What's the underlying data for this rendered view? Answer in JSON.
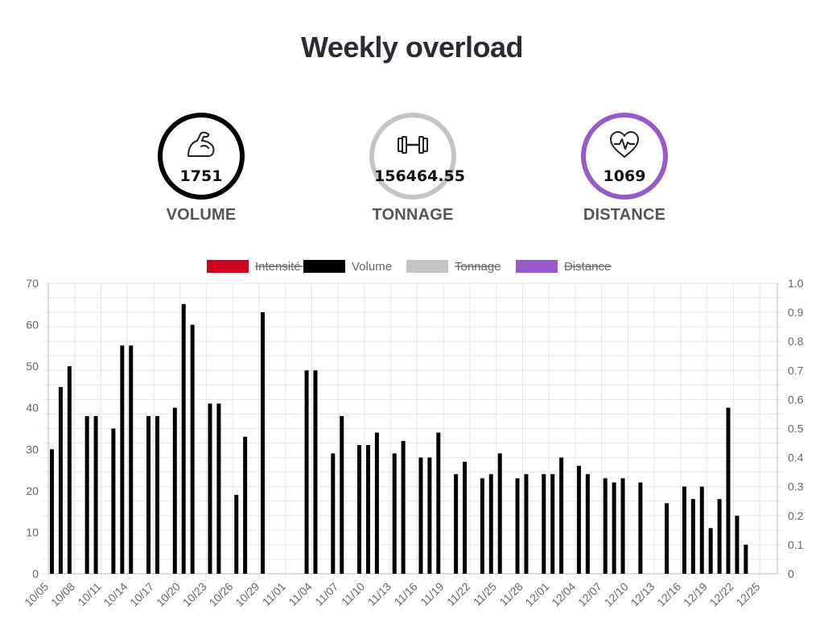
{
  "title": "Weekly overload",
  "stats": [
    {
      "label": "VOLUME",
      "value": "1751",
      "color": "#000000",
      "icon": "flexed-arm-icon"
    },
    {
      "label": "TONNAGE",
      "value": "156464.55",
      "color": "#c4c4c4",
      "icon": "dumbbell-icon"
    },
    {
      "label": "DISTANCE",
      "value": "1069",
      "color": "#9a59c9",
      "icon": "heartbeat-icon"
    }
  ],
  "chart_data": {
    "type": "bar",
    "legend": [
      {
        "name": "Intensité",
        "color": "#d0021b",
        "hidden": true
      },
      {
        "name": "Volume",
        "color": "#000000",
        "hidden": false
      },
      {
        "name": "Tonnage",
        "color": "#c4c4c4",
        "hidden": true
      },
      {
        "name": "Distance",
        "color": "#9a59c9",
        "hidden": true
      }
    ],
    "legend_position": "top",
    "x_range": [
      "2023-10-05",
      "2023-12-27"
    ],
    "x_ticks": [
      "10/05",
      "10/08",
      "10/11",
      "10/14",
      "10/17",
      "10/20",
      "10/23",
      "10/26",
      "10/29",
      "11/01",
      "11/04",
      "11/07",
      "11/10",
      "11/13",
      "11/16",
      "11/19",
      "11/22",
      "11/25",
      "11/28",
      "12/01",
      "12/04",
      "12/07",
      "12/10",
      "12/13",
      "12/16",
      "12/19",
      "12/22",
      "12/25"
    ],
    "ylim": [
      0,
      70
    ],
    "y_ticks": [
      0,
      10,
      20,
      30,
      40,
      50,
      60,
      70
    ],
    "y2lim": [
      0,
      1.0
    ],
    "y2_ticks": [
      "0",
      "0.1",
      "0.2",
      "0.3",
      "0.4",
      "0.5",
      "0.6",
      "0.7",
      "0.8",
      "0.9",
      "1.0"
    ],
    "grid": true,
    "series": [
      {
        "name": "Volume",
        "color": "#000000",
        "points": [
          [
            "2023-10-05",
            30
          ],
          [
            "2023-10-06",
            45
          ],
          [
            "2023-10-07",
            50
          ],
          [
            "2023-10-09",
            38
          ],
          [
            "2023-10-10",
            38
          ],
          [
            "2023-10-12",
            35
          ],
          [
            "2023-10-13",
            55
          ],
          [
            "2023-10-14",
            55
          ],
          [
            "2023-10-16",
            38
          ],
          [
            "2023-10-17",
            38
          ],
          [
            "2023-10-19",
            40
          ],
          [
            "2023-10-20",
            65
          ],
          [
            "2023-10-21",
            60
          ],
          [
            "2023-10-23",
            41
          ],
          [
            "2023-10-24",
            41
          ],
          [
            "2023-10-26",
            19
          ],
          [
            "2023-10-27",
            33
          ],
          [
            "2023-10-29",
            63
          ],
          [
            "2023-11-03",
            49
          ],
          [
            "2023-11-04",
            49
          ],
          [
            "2023-11-06",
            29
          ],
          [
            "2023-11-07",
            38
          ],
          [
            "2023-11-09",
            31
          ],
          [
            "2023-11-10",
            31
          ],
          [
            "2023-11-11",
            34
          ],
          [
            "2023-11-13",
            29
          ],
          [
            "2023-11-14",
            32
          ],
          [
            "2023-11-16",
            28
          ],
          [
            "2023-11-17",
            28
          ],
          [
            "2023-11-18",
            34
          ],
          [
            "2023-11-20",
            24
          ],
          [
            "2023-11-21",
            27
          ],
          [
            "2023-11-23",
            23
          ],
          [
            "2023-11-24",
            24
          ],
          [
            "2023-11-25",
            29
          ],
          [
            "2023-11-27",
            23
          ],
          [
            "2023-11-28",
            24
          ],
          [
            "2023-11-30",
            24
          ],
          [
            "2023-12-01",
            24
          ],
          [
            "2023-12-02",
            28
          ],
          [
            "2023-12-04",
            26
          ],
          [
            "2023-12-05",
            24
          ],
          [
            "2023-12-07",
            23
          ],
          [
            "2023-12-08",
            22
          ],
          [
            "2023-12-09",
            23
          ],
          [
            "2023-12-11",
            22
          ],
          [
            "2023-12-14",
            17
          ],
          [
            "2023-12-16",
            21
          ],
          [
            "2023-12-17",
            18
          ],
          [
            "2023-12-18",
            21
          ],
          [
            "2023-12-19",
            11
          ],
          [
            "2023-12-20",
            18
          ],
          [
            "2023-12-21",
            40
          ],
          [
            "2023-12-22",
            14
          ],
          [
            "2023-12-23",
            7
          ]
        ]
      }
    ]
  }
}
